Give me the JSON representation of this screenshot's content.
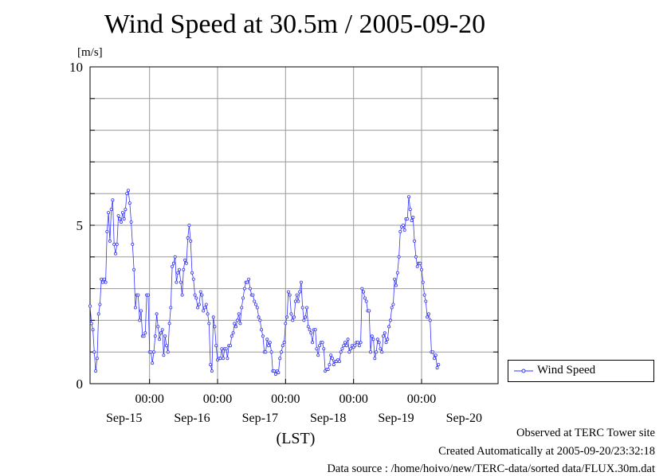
{
  "chart_data": {
    "type": "line",
    "title": "Wind Speed at 30.5m / 2005-09-20",
    "ylabel": "[m/s]",
    "xlabel": "(LST)",
    "ylim": [
      0,
      10
    ],
    "xlim": [
      0,
      144
    ],
    "yticks": [
      0,
      5,
      10
    ],
    "xticks": [
      {
        "x": 21,
        "label": "00:00"
      },
      {
        "x": 45,
        "label": "00:00"
      },
      {
        "x": 69,
        "label": "00:00"
      },
      {
        "x": 93,
        "label": "00:00"
      },
      {
        "x": 117,
        "label": "00:00"
      }
    ],
    "date_labels": [
      {
        "x": 12,
        "label": "Sep-15"
      },
      {
        "x": 36,
        "label": "Sep-16"
      },
      {
        "x": 60,
        "label": "Sep-17"
      },
      {
        "x": 84,
        "label": "Sep-18"
      },
      {
        "x": 108,
        "label": "Sep-19"
      },
      {
        "x": 132,
        "label": "Sep-20"
      }
    ],
    "grid": true,
    "legend_position": "right",
    "series": [
      {
        "name": "Wind Speed",
        "color": "#3333ff",
        "x_step": 0.5,
        "values": [
          2.45,
          1.9,
          1.7,
          1.0,
          0.4,
          0.8,
          2.2,
          2.5,
          3.3,
          3.2,
          3.3,
          3.2,
          4.8,
          5.4,
          4.5,
          5.5,
          5.8,
          4.4,
          4.1,
          4.4,
          5.3,
          5.2,
          5.1,
          5.4,
          5.2,
          5.5,
          6.0,
          6.1,
          5.7,
          5.1,
          4.4,
          3.6,
          2.4,
          2.8,
          2.8,
          2.0,
          2.3,
          1.5,
          1.5,
          1.6,
          2.8,
          2.8,
          1.0,
          1.0,
          0.65,
          1.0,
          1.5,
          2.2,
          1.8,
          1.4,
          1.6,
          1.7,
          0.9,
          1.5,
          1.2,
          1.0,
          1.9,
          2.4,
          3.7,
          3.8,
          4.0,
          3.2,
          3.5,
          3.6,
          3.2,
          2.8,
          3.6,
          3.9,
          3.8,
          4.6,
          5.0,
          4.5,
          3.5,
          3.3,
          2.8,
          2.7,
          2.4,
          2.5,
          2.9,
          2.8,
          2.3,
          2.4,
          2.5,
          2.2,
          1.9,
          0.6,
          0.4,
          2.1,
          1.8,
          1.2,
          0.75,
          0.8,
          0.8,
          1.1,
          0.8,
          1.1,
          1.1,
          0.8,
          1.2,
          1.2,
          1.5,
          1.6,
          1.9,
          1.8,
          2.0,
          2.2,
          1.9,
          2.4,
          2.7,
          3.0,
          3.2,
          3.2,
          3.3,
          3.0,
          2.8,
          2.8,
          2.6,
          2.5,
          2.4,
          2.1,
          2.0,
          1.7,
          1.5,
          1.0,
          1.0,
          1.4,
          1.2,
          1.3,
          1.0,
          0.4,
          0.4,
          0.3,
          0.4,
          0.35,
          0.8,
          1.0,
          1.2,
          1.3,
          1.9,
          2.1,
          2.9,
          2.8,
          2.2,
          2.0,
          2.1,
          2.6,
          2.8,
          2.6,
          2.9,
          3.2,
          2.4,
          2.0,
          2.1,
          2.4,
          1.8,
          1.7,
          1.6,
          1.3,
          1.7,
          1.7,
          1.1,
          0.9,
          1.2,
          1.3,
          1.3,
          1.1,
          0.4,
          0.45,
          0.45,
          0.6,
          0.9,
          0.8,
          0.6,
          0.7,
          0.7,
          0.75,
          0.7,
          1.0,
          1.1,
          1.2,
          1.3,
          1.2,
          1.4,
          1.0,
          1.1,
          1.2,
          1.15,
          1.2,
          1.3,
          1.3,
          1.2,
          1.3,
          3.0,
          2.9,
          2.7,
          2.6,
          2.3,
          2.3,
          1.0,
          1.5,
          1.4,
          0.8,
          1.0,
          1.4,
          1.3,
          1.1,
          1.0,
          1.5,
          1.6,
          1.3,
          1.4,
          1.8,
          2.0,
          2.4,
          2.5,
          3.3,
          3.1,
          3.5,
          4.0,
          4.8,
          4.95,
          5.0,
          4.85,
          5.2,
          5.2,
          5.9,
          5.5,
          5.15,
          5.25,
          4.5,
          4.0,
          3.7,
          3.8,
          3.8,
          3.6,
          3.2,
          2.8,
          2.6,
          2.1,
          2.2,
          2.0,
          1.0,
          1.0,
          0.8,
          0.9,
          0.5,
          0.6
        ]
      }
    ]
  },
  "footer": {
    "observed": "Observed at TERC Tower site",
    "created": "Created Automatically at 2005-09-20/23:32:18",
    "source": "Data source : /home/hoivo/new/TERC-data/sorted  data/FLUX.30m.dat"
  }
}
